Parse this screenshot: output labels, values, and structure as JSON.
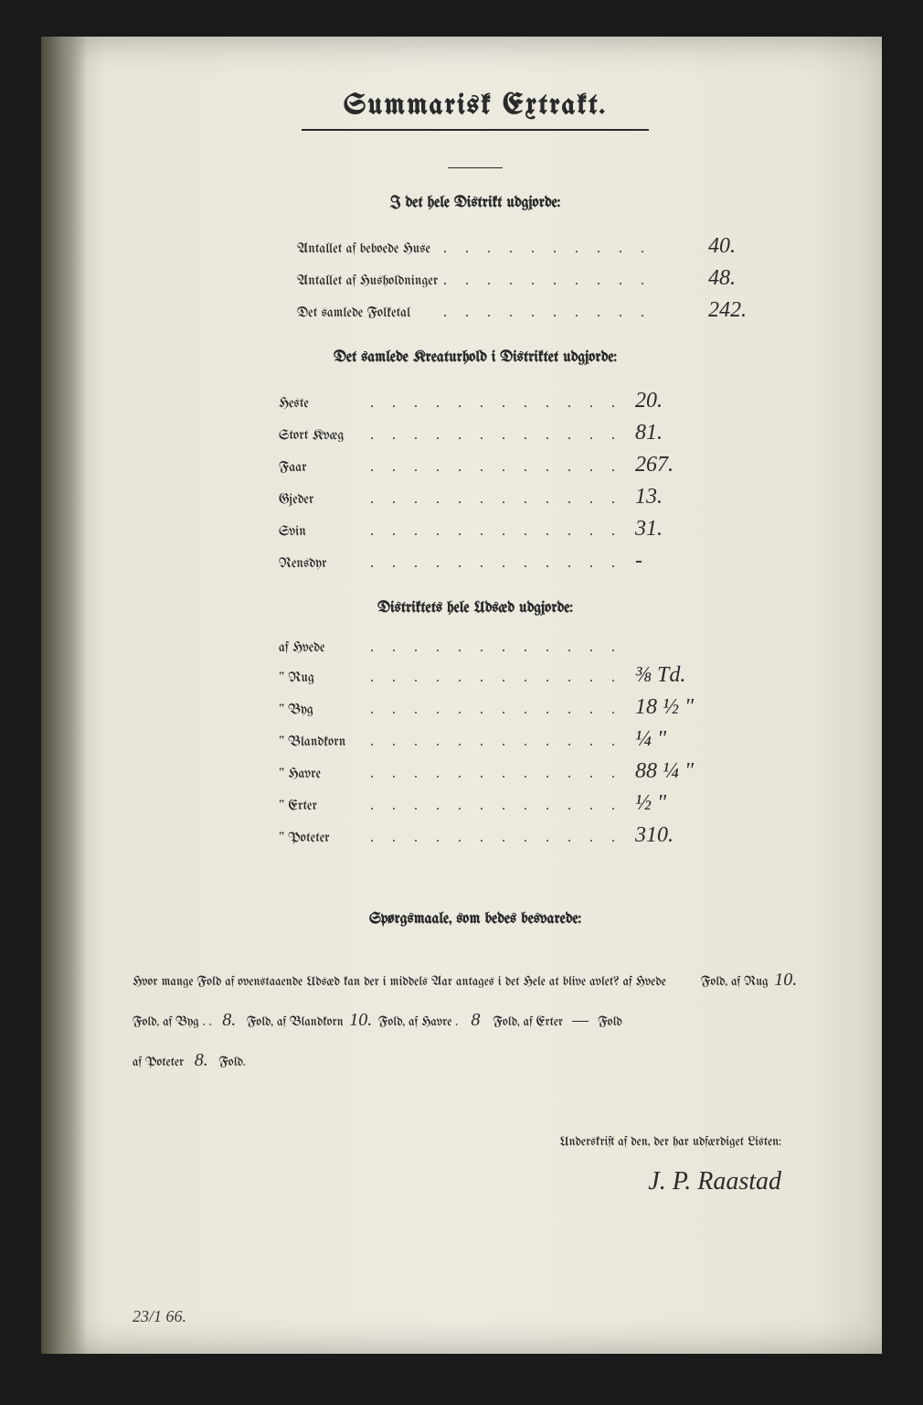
{
  "title": "Summarisk Extrakt.",
  "section1": {
    "header": "I det hele Distrikt udgjorde:",
    "rows": [
      {
        "label": "Antallet af beboede Huse",
        "value": "40."
      },
      {
        "label": "Antallet af Husholdninger",
        "value": "48."
      },
      {
        "label": "Det samlede Folketal",
        "value": "242."
      }
    ]
  },
  "section2": {
    "header": "Det samlede Kreaturhold i Distriktet udgjorde:",
    "rows": [
      {
        "label": "Heste",
        "value": "20."
      },
      {
        "label": "Stort Kvæg",
        "value": "81."
      },
      {
        "label": "Faar",
        "value": "267."
      },
      {
        "label": "Gjeder",
        "value": "13."
      },
      {
        "label": "Svin",
        "value": "31."
      },
      {
        "label": "Rensdyr",
        "value": "-"
      }
    ]
  },
  "section3": {
    "header": "Distriktets hele Udsæd udgjorde:",
    "rows": [
      {
        "label": "af Hvede",
        "value": ""
      },
      {
        "label": "\" Rug",
        "value": "⅜ Td."
      },
      {
        "label": "\" Byg",
        "value": "18 ½ \""
      },
      {
        "label": "\" Blandkorn",
        "value": "¼ \""
      },
      {
        "label": "\" Havre",
        "value": "88 ¼ \""
      },
      {
        "label": "\" Erter",
        "value": "½ \""
      },
      {
        "label": "\" Poteter",
        "value": "310."
      }
    ]
  },
  "questions": {
    "header": "Spørgsmaale, som bedes besvarede:",
    "intro": "Hvor mange Fold af ovenstaaende Udsæd kan der i middels Aar antages i det Hele at blive avlet?",
    "crops": [
      {
        "name": "af Hvede",
        "value": "",
        "unit": "Fold,"
      },
      {
        "name": "af Rug",
        "value": "10.",
        "unit": "Fold,"
      },
      {
        "name": "af Byg",
        "value": "8.",
        "unit": "Fold,"
      },
      {
        "name": "af Blandkorn",
        "value": "10.",
        "unit": "Fold,"
      },
      {
        "name": "af Havre",
        "value": "8",
        "unit": "Fold,"
      },
      {
        "name": "af Erter",
        "value": "—",
        "unit": "Fold"
      },
      {
        "name": "af Poteter",
        "value": "8.",
        "unit": "Fold."
      }
    ]
  },
  "signature": {
    "label": "Underskrift af den, der har udfærdiget Listen:",
    "name": "J. P. Raastad"
  },
  "bottom_note": "23/1 66.",
  "colors": {
    "paper": "#e8e6d9",
    "ink": "#2a2a2a",
    "background": "#1a1a1a"
  }
}
